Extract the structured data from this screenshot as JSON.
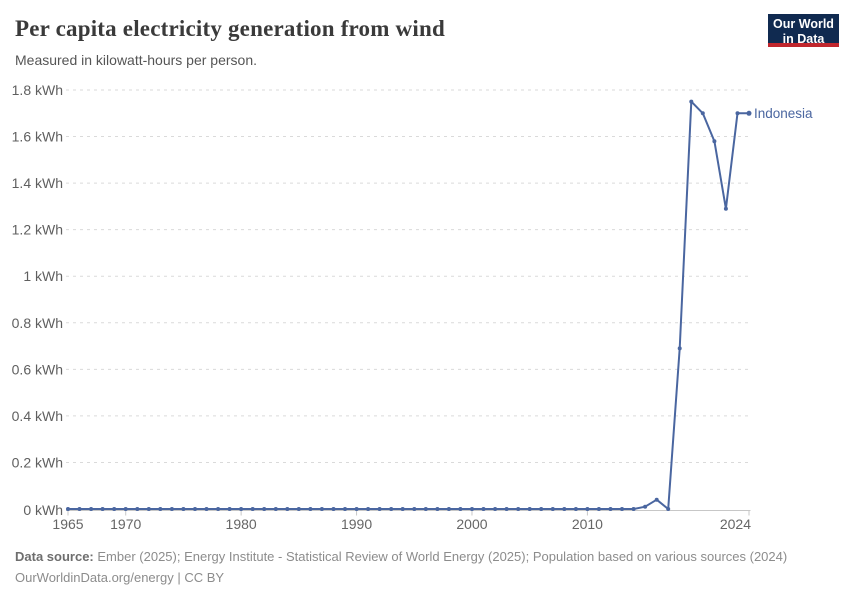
{
  "header": {
    "title": "Per capita electricity generation from wind",
    "subtitle": "Measured in kilowatt-hours per person."
  },
  "logo": {
    "line1": "Our World",
    "line2": "in Data",
    "bg_color": "#102a50",
    "accent_color": "#c0262d",
    "text_color": "#ffffff"
  },
  "chart_data": {
    "type": "line",
    "title": "Per capita electricity generation from wind",
    "xlabel": "",
    "ylabel": "kWh per person",
    "unit": "kWh",
    "xlim": [
      1965,
      2024
    ],
    "ylim": [
      0,
      1.8
    ],
    "grid": "horizontal-dashed",
    "legend_position": "end-of-line",
    "x_tick_years": [
      1965,
      1970,
      1980,
      1990,
      2000,
      2010,
      2024
    ],
    "y_ticks": [
      {
        "value": 0,
        "label": "0 kWh"
      },
      {
        "value": 0.2,
        "label": "0.2 kWh"
      },
      {
        "value": 0.4,
        "label": "0.4 kWh"
      },
      {
        "value": 0.6,
        "label": "0.6 kWh"
      },
      {
        "value": 0.8,
        "label": "0.8 kWh"
      },
      {
        "value": 1,
        "label": "1 kWh"
      },
      {
        "value": 1.2,
        "label": "1.2 kWh"
      },
      {
        "value": 1.4,
        "label": "1.4 kWh"
      },
      {
        "value": 1.6,
        "label": "1.6 kWh"
      },
      {
        "value": 1.8,
        "label": "1.8 kWh"
      }
    ],
    "entity_label": "Indonesia",
    "series": [
      {
        "name": "Indonesia",
        "color": "#4a66a0",
        "x": [
          1965,
          1966,
          1967,
          1968,
          1969,
          1970,
          1971,
          1972,
          1973,
          1974,
          1975,
          1976,
          1977,
          1978,
          1979,
          1980,
          1981,
          1982,
          1983,
          1984,
          1985,
          1986,
          1987,
          1988,
          1989,
          1990,
          1991,
          1992,
          1993,
          1994,
          1995,
          1996,
          1997,
          1998,
          1999,
          2000,
          2001,
          2002,
          2003,
          2004,
          2005,
          2006,
          2007,
          2008,
          2009,
          2010,
          2011,
          2012,
          2013,
          2014,
          2015,
          2016,
          2017,
          2018,
          2019,
          2020,
          2021,
          2022,
          2023,
          2024
        ],
        "values": [
          0,
          0,
          0,
          0,
          0,
          0,
          0,
          0,
          0,
          0,
          0,
          0,
          0,
          0,
          0,
          0,
          0,
          0,
          0,
          0,
          0,
          0,
          0,
          0,
          0,
          0,
          0,
          0,
          0,
          0,
          0,
          0,
          0,
          0,
          0,
          0,
          0,
          0,
          0,
          0,
          0,
          0,
          0,
          0,
          0,
          0,
          0,
          0,
          0,
          0,
          0.01,
          0.04,
          0,
          0.69,
          1.75,
          1.7,
          1.58,
          1.29,
          1.7,
          1.7
        ]
      }
    ]
  },
  "footer": {
    "source_label": "Data source:",
    "source_text": "Ember (2025); Energy Institute - Statistical Review of World Energy (2025); Population based on various sources (2024)",
    "link_text": "OurWorldinData.org/energy | CC BY"
  }
}
